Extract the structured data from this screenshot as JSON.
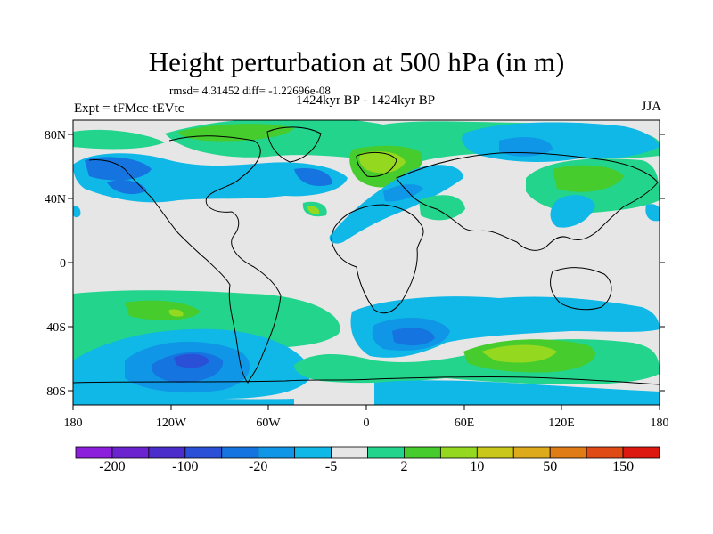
{
  "title": "Height perturbation at 500 hPa (in m)",
  "stats": "rmsd= 4.31452 diff= -1.22696e-08",
  "period": "1424kyr BP - 1424kyr BP",
  "experiment": "Expt = tFMcc-tEVtc",
  "season": "JJA",
  "axes": {
    "lat_labels": [
      "80N",
      "40N",
      "0",
      "40S",
      "80S"
    ],
    "lon_labels": [
      "180",
      "120W",
      "60W",
      "0",
      "60E",
      "120E",
      "180"
    ]
  },
  "colorbar": {
    "colors": [
      "#8b1fdc",
      "#6a23cf",
      "#4a2dca",
      "#2b50d8",
      "#1574e0",
      "#0f96e6",
      "#0fb8e6",
      "#e6e6e6",
      "#22d48c",
      "#46cc2c",
      "#94d820",
      "#c9c81a",
      "#dcaa1a",
      "#e07c16",
      "#e04a14",
      "#dc1810"
    ],
    "labels": [
      "-200",
      "-100",
      "-20",
      "-5",
      "2",
      "10",
      "50",
      "150"
    ]
  }
}
